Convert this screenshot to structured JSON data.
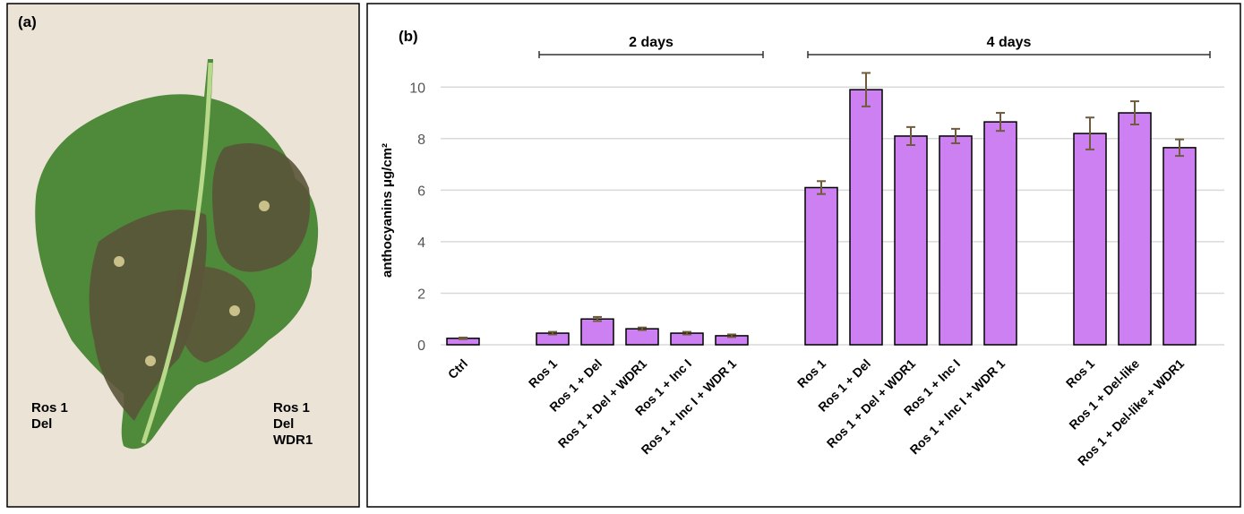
{
  "photo_panel": {
    "label": "(a)",
    "left_note": [
      "Ros 1",
      "Del"
    ],
    "right_note": [
      "Ros 1",
      "Del",
      "WDR1"
    ]
  },
  "chart_data": {
    "type": "bar",
    "panel_label": "(b)",
    "ylabel": "anthocyanins μg/cm²",
    "group_labels": [
      "2 days",
      "4 days"
    ],
    "categories": [
      "Ctrl",
      null,
      "Ros 1",
      "Ros 1 + Del",
      "Ros 1 + Del + WDR1",
      "Ros 1 + Inc I",
      "Ros 1 + Inc I + WDR 1",
      null,
      "Ros 1",
      "Ros 1 + Del",
      "Ros 1 + Del + WDR1",
      "Ros 1 + Inc I",
      "Ros 1 + Inc I + WDR 1",
      null,
      "Ros 1",
      "Ros 1 + Del-like",
      "Ros 1 + Del-like + WDR1"
    ],
    "values": [
      0.25,
      null,
      0.45,
      1.0,
      0.62,
      0.45,
      0.35,
      null,
      6.1,
      9.9,
      8.1,
      8.1,
      8.65,
      null,
      8.2,
      9.0,
      7.65
    ],
    "errors": [
      0.03,
      null,
      0.05,
      0.08,
      0.05,
      0.05,
      0.05,
      null,
      0.25,
      0.65,
      0.35,
      0.28,
      0.35,
      null,
      0.62,
      0.45,
      0.32
    ],
    "color": "#cc80f2",
    "error_color": "#6e5c3c",
    "ylim": [
      0,
      10.6
    ],
    "yticks": [
      0,
      2,
      4,
      6,
      8,
      10
    ],
    "grid": true
  }
}
